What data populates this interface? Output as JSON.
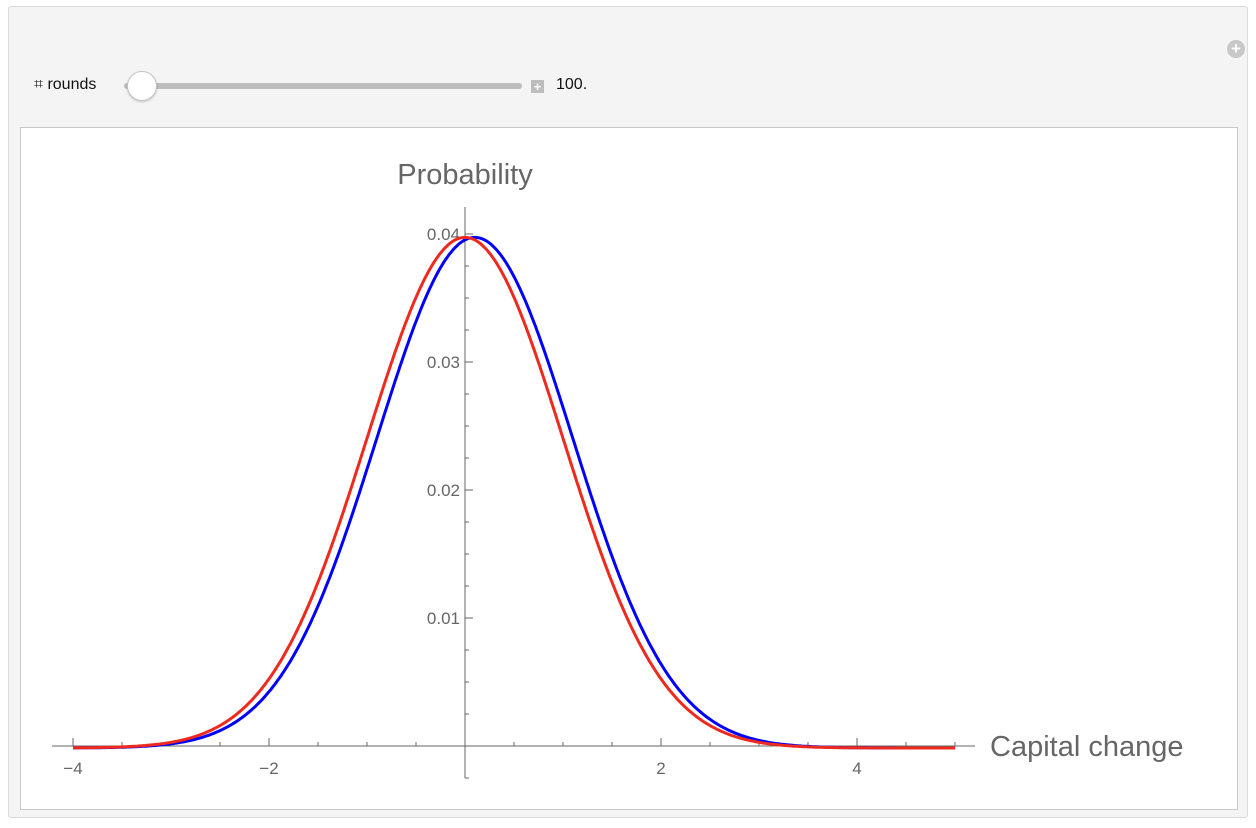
{
  "controls": {
    "slider_label": "⌗ rounds",
    "slider_value": "100.",
    "slider_fraction": 0.05,
    "step_icon": "plus-icon",
    "options_icon": "plus-circle-icon"
  },
  "chart_data": {
    "type": "line",
    "xlabel": "Capital change",
    "ylabel": "Probability",
    "xlim": [
      -4,
      5
    ],
    "ylim": [
      0,
      0.042
    ],
    "x_ticks": [
      -4,
      -2,
      2,
      4
    ],
    "x_tick_labels": [
      "−4",
      "−2",
      "2",
      "4"
    ],
    "y_ticks": [
      0.01,
      0.02,
      0.03,
      0.04
    ],
    "y_tick_labels": [
      "0.01",
      "0.02",
      "0.03",
      "0.04"
    ],
    "grid": false,
    "series": [
      {
        "color": "#0000ff",
        "distribution": "normal",
        "mean": 0.1,
        "sd": 1,
        "scale": 0.1
      },
      {
        "color": "#ee2a1f",
        "distribution": "normal",
        "mean": 0.0,
        "sd": 1,
        "scale": 0.1
      }
    ]
  }
}
